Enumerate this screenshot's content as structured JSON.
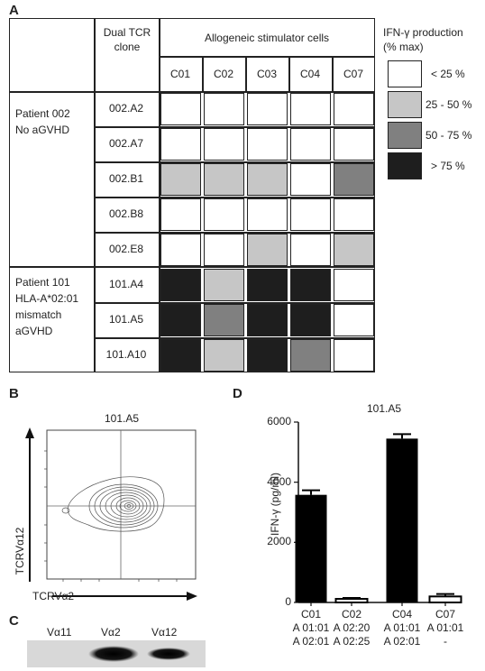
{
  "panel_a": {
    "label": "A",
    "header_dual": [
      "Dual TCR",
      "clone"
    ],
    "header_allo": "Allogeneic stimulator cells",
    "stimulators": [
      "C01",
      "C02",
      "C03",
      "C04",
      "C07"
    ],
    "groups": [
      {
        "lines": [
          "Patient 002",
          "No aGVHD"
        ]
      },
      {
        "lines": [
          "Patient 101",
          "HLA-A*02:01",
          "mismatch",
          "aGVHD"
        ]
      }
    ],
    "clones": [
      "002.A2",
      "002.A7",
      "002.B1",
      "002.B8",
      "002.E8",
      "101.A4",
      "101.A5",
      "101.A10"
    ],
    "levels": [
      [
        0,
        0,
        0,
        0,
        0
      ],
      [
        0,
        0,
        0,
        0,
        0
      ],
      [
        1,
        1,
        1,
        0,
        2
      ],
      [
        0,
        0,
        0,
        0,
        0
      ],
      [
        0,
        0,
        1,
        0,
        1
      ],
      [
        3,
        1,
        3,
        3,
        0
      ],
      [
        3,
        2,
        3,
        3,
        0
      ],
      [
        3,
        1,
        3,
        2,
        0
      ]
    ],
    "level_colors": [
      "#ffffff",
      "#c6c6c6",
      "#808080",
      "#1e1e1e"
    ],
    "legend_title": [
      "IFN-γ production",
      "(% max)"
    ],
    "legend_items": [
      "< 25 %",
      "25 - 50 %",
      "50 - 75 %",
      "> 75 %"
    ]
  },
  "panel_b": {
    "label": "B",
    "title": "101.A5",
    "ylabel": "TCRVα12",
    "xlabel": "TCRVα2"
  },
  "panel_c": {
    "label": "C",
    "lanes": [
      "Vα11",
      "Vα2",
      "Vα12"
    ]
  },
  "panel_d": {
    "label": "D",
    "title": "101.A5",
    "ylabel": "IFN-γ (pg/ml)",
    "yticks": [
      "0",
      "2000",
      "4000",
      "6000"
    ],
    "categories": [
      [
        "C01",
        "A 01:01",
        "A 02:01"
      ],
      [
        "C02",
        "A 02:20",
        "A 02:25"
      ],
      [
        "C04",
        "A 01:01",
        "A 02:01"
      ],
      [
        "C07",
        "A 01:01",
        "-"
      ]
    ]
  },
  "chart_data": {
    "type": "bar",
    "title": "101.A5",
    "ylabel": "IFN-γ (pg/ml)",
    "categories": [
      "C01",
      "C02",
      "C04",
      "C07"
    ],
    "values": [
      3580,
      120,
      5450,
      200
    ],
    "errors": [
      150,
      30,
      150,
      80
    ],
    "fill": [
      "black",
      "white",
      "black",
      "white"
    ],
    "ylim": [
      0,
      6000
    ]
  }
}
